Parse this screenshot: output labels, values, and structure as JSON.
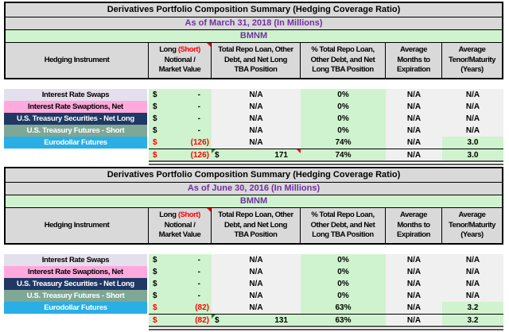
{
  "colors": {
    "header_bg": "#D9D9D9",
    "light_green": "#CFF3CE",
    "light_gray": "#F1F0F0",
    "lavender": "#E4DFEC",
    "pink": "#FFA9DC",
    "navy": "#1F3864",
    "teal": "#7EA795",
    "cyan": "#29AEE5",
    "purple_text": "#7030A0",
    "red_text": "#FF0000",
    "flag_green": "#1E7E1E",
    "border": "#000000",
    "double_rule": "#595959"
  },
  "columns": {
    "instrument": {
      "label": "Hedging Instrument"
    },
    "notional": {
      "long": "Long",
      "short": "(Short)",
      "line2": "Notional /",
      "line3": "Market Value"
    },
    "repo": {
      "lines": [
        "Total Repo Loan, Other",
        "Debt, and Net Long",
        "TBA Position"
      ]
    },
    "pct": {
      "lines": [
        "% Total Repo Loan,",
        "Other Debt, and Net",
        "Long TBA Position"
      ]
    },
    "months": {
      "lines": [
        "Average",
        "Months to",
        "Expiration"
      ]
    },
    "tenor": {
      "lines": [
        "Average",
        "Tenor/Maturity",
        "(Years)"
      ]
    }
  },
  "chart_data": [
    {
      "type": "table",
      "title": "Derivatives Portfolio Composition Summary (Hedging Coverage Ratio)",
      "as_of": "As of March 31, 2018 (In Millions)",
      "entity": "BMNM",
      "rows": [
        {
          "instrument": "Interest Rate Swaps",
          "style": "lavender",
          "currency": "$",
          "notional": "-",
          "repo": "N/A",
          "pct": "0%",
          "months": "N/A",
          "tenor": "N/A",
          "negative": false,
          "tenor_highlight": false,
          "comment_flag": false
        },
        {
          "instrument": "Interest Rate Swaptions, Net",
          "style": "pink",
          "currency": "$",
          "notional": "-",
          "repo": "N/A",
          "pct": "0%",
          "months": "N/A",
          "tenor": "N/A",
          "negative": false,
          "tenor_highlight": false,
          "comment_flag": false
        },
        {
          "instrument": "U.S. Treasury Securities - Net Long",
          "style": "navy",
          "currency": "$",
          "notional": "-",
          "repo": "N/A",
          "pct": "0%",
          "months": "N/A",
          "tenor": "N/A",
          "negative": false,
          "tenor_highlight": false,
          "comment_flag": true
        },
        {
          "instrument": "U.S. Treasury Futures - Short",
          "style": "teal",
          "currency": "$",
          "notional": "-",
          "repo": "N/A",
          "pct": "0%",
          "months": "N/A",
          "tenor": "N/A",
          "negative": false,
          "tenor_highlight": false,
          "comment_flag": true
        },
        {
          "instrument": "Eurodollar Futures",
          "style": "cyan",
          "currency": "$",
          "notional": "(126)",
          "repo": "N/A",
          "pct": "74%",
          "months": "N/A",
          "tenor": "3.0",
          "negative": true,
          "tenor_highlight": true,
          "comment_flag": false
        }
      ],
      "total": {
        "currency": "$",
        "notional": "(126)",
        "repo_currency": "$",
        "repo": "171",
        "pct": "74%",
        "months": "N/A",
        "tenor": "3.0",
        "negative": true,
        "green_flag": true,
        "red_flag": true
      }
    },
    {
      "type": "table",
      "title": "Derivatives Portfolio Composition Summary (Hedging Coverage Ratio)",
      "as_of": "As of June 30, 2016 (In Millions)",
      "entity": "BMNM",
      "rows": [
        {
          "instrument": "Interest Rate Swaps",
          "style": "lavender",
          "currency": "$",
          "notional": "-",
          "repo": "N/A",
          "pct": "0%",
          "months": "N/A",
          "tenor": "N/A",
          "negative": false,
          "tenor_highlight": false,
          "comment_flag": false
        },
        {
          "instrument": "Interest Rate Swaptions, Net",
          "style": "pink",
          "currency": "$",
          "notional": "-",
          "repo": "N/A",
          "pct": "0%",
          "months": "N/A",
          "tenor": "N/A",
          "negative": false,
          "tenor_highlight": false,
          "comment_flag": false
        },
        {
          "instrument": "U.S. Treasury Securities - Net Long",
          "style": "navy",
          "currency": "$",
          "notional": "-",
          "repo": "N/A",
          "pct": "0%",
          "months": "N/A",
          "tenor": "N/A",
          "negative": false,
          "tenor_highlight": false,
          "comment_flag": true
        },
        {
          "instrument": "U.S. Treasury Futures - Short",
          "style": "teal",
          "currency": "$",
          "notional": "-",
          "repo": "N/A",
          "pct": "0%",
          "months": "N/A",
          "tenor": "N/A",
          "negative": false,
          "tenor_highlight": false,
          "comment_flag": true
        },
        {
          "instrument": "Eurodollar Futures",
          "style": "cyan",
          "currency": "$",
          "notional": "(82)",
          "repo": "N/A",
          "pct": "63%",
          "months": "N/A",
          "tenor": "3.2",
          "negative": true,
          "tenor_highlight": true,
          "comment_flag": false
        }
      ],
      "total": {
        "currency": "$",
        "notional": "(82)",
        "repo_currency": "$",
        "repo": "131",
        "pct": "63%",
        "months": "N/A",
        "tenor": "3.2",
        "negative": true,
        "green_flag": true,
        "red_flag": false
      }
    }
  ]
}
